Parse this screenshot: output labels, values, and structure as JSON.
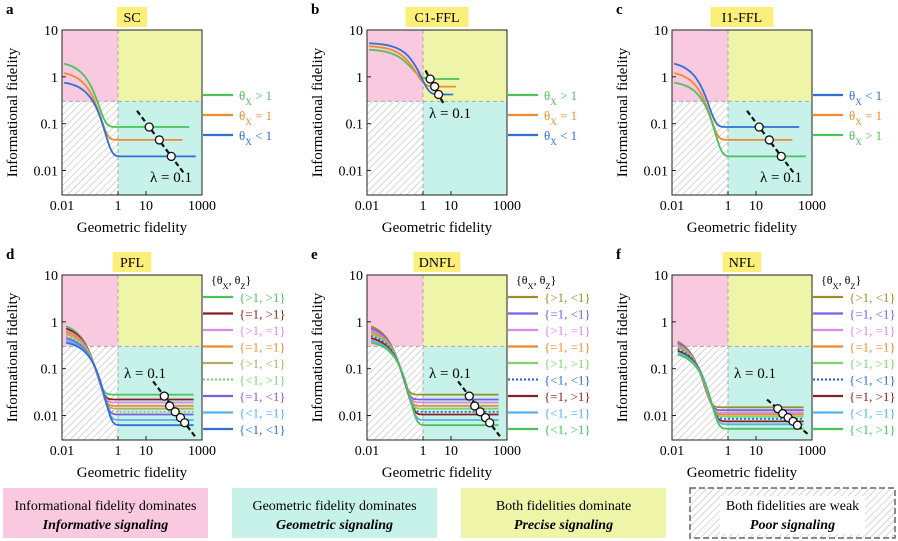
{
  "colors": {
    "pink": "#f9c9df",
    "cyan": "#c6f2ea",
    "yellow": "#eef5a9",
    "weak_hatch": "#bdbdbd",
    "title_box": "#fbef7a",
    "green": "#4cc25a",
    "orange": "#f08a2c",
    "blue": "#2f6fd6",
    "brown": "#8a1f1f",
    "olive": "#9b8f2c",
    "purple": "#7b5ce6",
    "violet": "#d98ae6",
    "lightgreen": "#7fd46e",
    "lightblue": "#54b4e6",
    "khaki": "#b7ad66",
    "gray_dash": "#a9a9a9"
  },
  "legend_header": "{θX, θZ}",
  "chart_data": [
    {
      "panel": "a",
      "title": "SC",
      "type": "line",
      "xlabel": "Geometric fidelity",
      "ylabel": "Informational fidelity",
      "x_ticks": [
        "0.01",
        "1",
        "10",
        "1000"
      ],
      "y_ticks": [
        "0.01",
        "0.1",
        "1",
        "10"
      ],
      "xlim": [
        0.01,
        1000
      ],
      "ylim": [
        0.003,
        10
      ],
      "lambda_label": "λ = 0.1",
      "legend": [
        {
          "label": "θX > 1",
          "color": "#4cc25a"
        },
        {
          "label": "θX = 1",
          "color": "#f08a2c"
        },
        {
          "label": "θX < 1",
          "color": "#2f6fd6"
        }
      ],
      "series": [
        {
          "color": "#4cc25a",
          "x0": 0.012,
          "x1": 350,
          "start": 1.9,
          "plateau": 0.085,
          "scale": 0.08
        },
        {
          "color": "#f08a2c",
          "x0": 0.012,
          "x1": 200,
          "start": 1.2,
          "plateau": 0.045,
          "scale": 0.09
        },
        {
          "color": "#2f6fd6",
          "x0": 0.012,
          "x1": 600,
          "start": 0.75,
          "plateau": 0.02,
          "scale": 0.12
        }
      ],
      "lambda_points": [
        [
          13,
          0.085
        ],
        [
          30,
          0.045
        ],
        [
          80,
          0.02
        ]
      ]
    },
    {
      "panel": "b",
      "title": "C1-FFL",
      "type": "line",
      "xlabel": "Geometric fidelity",
      "ylabel": "Informational fidelity",
      "x_ticks": [
        "0.01",
        "1",
        "10",
        "1000"
      ],
      "y_ticks": [
        "0.01",
        "0.1",
        "1",
        "10"
      ],
      "xlim": [
        0.01,
        1000
      ],
      "ylim": [
        0.003,
        10
      ],
      "lambda_label": "λ = 0.1",
      "legend": [
        {
          "label": "θX > 1",
          "color": "#4cc25a"
        },
        {
          "label": "θX = 1",
          "color": "#f08a2c"
        },
        {
          "label": "θX < 1",
          "color": "#2f6fd6"
        }
      ],
      "series": [
        {
          "color": "#4cc25a",
          "x0": 0.012,
          "x1": 20,
          "start": 3.8,
          "plateau": 0.9,
          "scale": 0.25
        },
        {
          "color": "#f08a2c",
          "x0": 0.012,
          "x1": 15,
          "start": 4.5,
          "plateau": 0.62,
          "scale": 0.3
        },
        {
          "color": "#2f6fd6",
          "x0": 0.012,
          "x1": 12,
          "start": 5.2,
          "plateau": 0.42,
          "scale": 0.4
        }
      ],
      "lambda_points": [
        [
          1.8,
          0.9
        ],
        [
          2.6,
          0.62
        ],
        [
          3.6,
          0.42
        ]
      ]
    },
    {
      "panel": "c",
      "title": "I1-FFL",
      "type": "line",
      "xlabel": "Geometric fidelity",
      "ylabel": "Informational fidelity",
      "x_ticks": [
        "0.01",
        "1",
        "10",
        "1000"
      ],
      "y_ticks": [
        "0.01",
        "0.1",
        "1",
        "10"
      ],
      "xlim": [
        0.01,
        1000
      ],
      "ylim": [
        0.003,
        10
      ],
      "lambda_label": "λ = 0.1",
      "legend": [
        {
          "label": "θX < 1",
          "color": "#2f6fd6"
        },
        {
          "label": "θX = 1",
          "color": "#f08a2c"
        },
        {
          "label": "θX > 1",
          "color": "#4cc25a"
        }
      ],
      "series": [
        {
          "color": "#2f6fd6",
          "x0": 0.012,
          "x1": 350,
          "start": 1.9,
          "plateau": 0.085,
          "scale": 0.08
        },
        {
          "color": "#f08a2c",
          "x0": 0.012,
          "x1": 200,
          "start": 1.2,
          "plateau": 0.045,
          "scale": 0.09
        },
        {
          "color": "#4cc25a",
          "x0": 0.012,
          "x1": 600,
          "start": 0.75,
          "plateau": 0.02,
          "scale": 0.12
        }
      ],
      "lambda_points": [
        [
          13,
          0.085
        ],
        [
          30,
          0.045
        ],
        [
          80,
          0.02
        ]
      ]
    },
    {
      "panel": "d",
      "title": "PFL",
      "type": "line",
      "xlabel": "Geometric fidelity",
      "ylabel": "Informational fidelity",
      "x_ticks": [
        "0.01",
        "1",
        "10",
        "1000"
      ],
      "y_ticks": [
        "0.01",
        "0.1",
        "1",
        "10"
      ],
      "xlim": [
        0.01,
        1000
      ],
      "ylim": [
        0.003,
        10
      ],
      "lambda_label": "λ = 0.1",
      "legend_header": "{θX, θZ}",
      "legend": [
        {
          "label": "{>1, >1}",
          "color": "#4cc25a"
        },
        {
          "label": "{=1, >1}",
          "color": "#8a1f1f"
        },
        {
          "label": "{>1, =1}",
          "color": "#d98ae6"
        },
        {
          "label": "{=1, =1}",
          "color": "#f08a2c"
        },
        {
          "label": "{>1, <1}",
          "color": "#b7ad66"
        },
        {
          "label": "{<1, >1}",
          "color": "#7fd46e",
          "dashed": true
        },
        {
          "label": "{=1, <1}",
          "color": "#7b5ce6"
        },
        {
          "label": "{<1, =1}",
          "color": "#54b4e6"
        },
        {
          "label": "{<1, <1}",
          "color": "#2f6fd6"
        }
      ],
      "series": [
        {
          "color": "#4cc25a",
          "x0": 0.014,
          "x1": 500,
          "start": 0.8,
          "plateau": 0.028,
          "scale": 0.06
        },
        {
          "color": "#8a1f1f",
          "x0": 0.014,
          "x1": 500,
          "start": 0.72,
          "plateau": 0.022,
          "scale": 0.065
        },
        {
          "color": "#d98ae6",
          "x0": 0.014,
          "x1": 500,
          "start": 0.65,
          "plateau": 0.019,
          "scale": 0.07
        },
        {
          "color": "#f08a2c",
          "x0": 0.014,
          "x1": 500,
          "start": 0.6,
          "plateau": 0.016,
          "scale": 0.075
        },
        {
          "color": "#b7ad66",
          "x0": 0.014,
          "x1": 500,
          "start": 0.55,
          "plateau": 0.014,
          "scale": 0.08
        },
        {
          "color": "#7fd46e",
          "x0": 0.014,
          "x1": 500,
          "start": 0.5,
          "plateau": 0.012,
          "scale": 0.085,
          "dashed": true
        },
        {
          "color": "#7b5ce6",
          "x0": 0.014,
          "x1": 500,
          "start": 0.45,
          "plateau": 0.0105,
          "scale": 0.09
        },
        {
          "color": "#54b4e6",
          "x0": 0.014,
          "x1": 500,
          "start": 0.4,
          "plateau": 0.008,
          "scale": 0.1
        },
        {
          "color": "#2f6fd6",
          "x0": 0.014,
          "x1": 500,
          "start": 0.36,
          "plateau": 0.0062,
          "scale": 0.11
        }
      ],
      "lambda_points": [
        [
          45,
          0.026
        ],
        [
          70,
          0.016
        ],
        [
          110,
          0.012
        ],
        [
          170,
          0.009
        ],
        [
          240,
          0.007
        ]
      ]
    },
    {
      "panel": "e",
      "title": "DNFL",
      "type": "line",
      "xlabel": "Geometric fidelity",
      "ylabel": "Informational fidelity",
      "x_ticks": [
        "0.01",
        "1",
        "10",
        "1000"
      ],
      "y_ticks": [
        "0.01",
        "0.1",
        "1",
        "10"
      ],
      "xlim": [
        0.01,
        1000
      ],
      "ylim": [
        0.003,
        10
      ],
      "lambda_label": "λ = 0.1",
      "legend_header": "{θX, θZ}",
      "legend": [
        {
          "label": "{>1, <1}",
          "color": "#9b8f2c"
        },
        {
          "label": "{=1, <1}",
          "color": "#7b5ce6"
        },
        {
          "label": "{>1, =1}",
          "color": "#d98ae6"
        },
        {
          "label": "{=1, =1}",
          "color": "#f08a2c"
        },
        {
          "label": "{>1, >1}",
          "color": "#7fd46e"
        },
        {
          "label": "{<1, <1}",
          "color": "#2f6fd6",
          "dashed": true
        },
        {
          "label": "{=1, >1}",
          "color": "#8a1f1f"
        },
        {
          "label": "{<1, =1}",
          "color": "#54b4e6"
        },
        {
          "label": "{<1, >1}",
          "color": "#4cc25a"
        }
      ],
      "series": [
        {
          "color": "#9b8f2c",
          "x0": 0.014,
          "x1": 500,
          "start": 0.8,
          "plateau": 0.028,
          "scale": 0.06
        },
        {
          "color": "#7b5ce6",
          "x0": 0.014,
          "x1": 500,
          "start": 0.72,
          "plateau": 0.022,
          "scale": 0.065
        },
        {
          "color": "#d98ae6",
          "x0": 0.014,
          "x1": 500,
          "start": 0.65,
          "plateau": 0.019,
          "scale": 0.07
        },
        {
          "color": "#f08a2c",
          "x0": 0.014,
          "x1": 500,
          "start": 0.6,
          "plateau": 0.016,
          "scale": 0.075
        },
        {
          "color": "#7fd46e",
          "x0": 0.014,
          "x1": 500,
          "start": 0.55,
          "plateau": 0.014,
          "scale": 0.08
        },
        {
          "color": "#2f6fd6",
          "x0": 0.014,
          "x1": 500,
          "start": 0.5,
          "plateau": 0.012,
          "scale": 0.085,
          "dashed": true
        },
        {
          "color": "#8a1f1f",
          "x0": 0.014,
          "x1": 500,
          "start": 0.45,
          "plateau": 0.0105,
          "scale": 0.09
        },
        {
          "color": "#54b4e6",
          "x0": 0.014,
          "x1": 500,
          "start": 0.4,
          "plateau": 0.008,
          "scale": 0.1
        },
        {
          "color": "#4cc25a",
          "x0": 0.014,
          "x1": 500,
          "start": 0.36,
          "plateau": 0.0062,
          "scale": 0.11
        }
      ],
      "lambda_points": [
        [
          45,
          0.026
        ],
        [
          70,
          0.016
        ],
        [
          110,
          0.012
        ],
        [
          170,
          0.009
        ],
        [
          240,
          0.007
        ]
      ]
    },
    {
      "panel": "f",
      "title": "NFL",
      "type": "line",
      "xlabel": "Geometric fidelity",
      "ylabel": "Informational fidelity",
      "x_ticks": [
        "0.01",
        "1",
        "10",
        "1000"
      ],
      "y_ticks": [
        "0.01",
        "0.1",
        "1",
        "10"
      ],
      "xlim": [
        0.01,
        1000
      ],
      "ylim": [
        0.003,
        10
      ],
      "lambda_label": "λ = 0.1",
      "legend_header": "{θX, θZ}",
      "legend": [
        {
          "label": "{>1, <1}",
          "color": "#9b8f2c"
        },
        {
          "label": "{=1, <1}",
          "color": "#7b5ce6"
        },
        {
          "label": "{>1, =1}",
          "color": "#d98ae6"
        },
        {
          "label": "{=1, =1}",
          "color": "#f08a2c"
        },
        {
          "label": "{>1, >1}",
          "color": "#7fd46e"
        },
        {
          "label": "{<1, <1}",
          "color": "#2f6fd6",
          "dashed": true
        },
        {
          "label": "{=1, >1}",
          "color": "#8a1f1f"
        },
        {
          "label": "{<1, =1}",
          "color": "#54b4e6"
        },
        {
          "label": "{<1, >1}",
          "color": "#4cc25a"
        }
      ],
      "series": [
        {
          "color": "#9b8f2c",
          "x0": 0.016,
          "x1": 500,
          "start": 0.38,
          "plateau": 0.015,
          "scale": 0.05
        },
        {
          "color": "#7b5ce6",
          "x0": 0.016,
          "x1": 500,
          "start": 0.35,
          "plateau": 0.013,
          "scale": 0.055
        },
        {
          "color": "#d98ae6",
          "x0": 0.016,
          "x1": 500,
          "start": 0.32,
          "plateau": 0.0115,
          "scale": 0.06
        },
        {
          "color": "#f08a2c",
          "x0": 0.016,
          "x1": 500,
          "start": 0.3,
          "plateau": 0.0105,
          "scale": 0.065
        },
        {
          "color": "#7fd46e",
          "x0": 0.016,
          "x1": 500,
          "start": 0.28,
          "plateau": 0.0095,
          "scale": 0.07
        },
        {
          "color": "#2f6fd6",
          "x0": 0.016,
          "x1": 500,
          "start": 0.26,
          "plateau": 0.0085,
          "scale": 0.075,
          "dashed": true
        },
        {
          "color": "#8a1f1f",
          "x0": 0.016,
          "x1": 500,
          "start": 0.24,
          "plateau": 0.0075,
          "scale": 0.08
        },
        {
          "color": "#54b4e6",
          "x0": 0.016,
          "x1": 500,
          "start": 0.22,
          "plateau": 0.0065,
          "scale": 0.085
        },
        {
          "color": "#4cc25a",
          "x0": 0.016,
          "x1": 500,
          "start": 0.2,
          "plateau": 0.0052,
          "scale": 0.09
        }
      ],
      "lambda_points": [
        [
          60,
          0.014
        ],
        [
          90,
          0.011
        ],
        [
          140,
          0.009
        ],
        [
          210,
          0.0075
        ],
        [
          300,
          0.0062
        ]
      ]
    }
  ],
  "bottom_legend": [
    {
      "line1": "Informational fidelity dominates",
      "line2": "Informative signaling",
      "fill": "#f9c9df"
    },
    {
      "line1": "Geometric fidelity dominates",
      "line2": "Geometric signaling",
      "fill": "#c6f2ea"
    },
    {
      "line1": "Both fidelities dominate",
      "line2": "Precise signaling",
      "fill": "#eef5a9"
    },
    {
      "line1": "Both fidelities are weak",
      "line2": "Poor signaling",
      "fill": "hatch"
    }
  ]
}
